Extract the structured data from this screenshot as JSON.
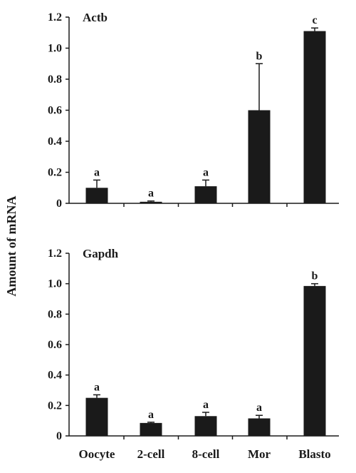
{
  "y_axis_label": "Amount of mRNA",
  "chart_data": [
    {
      "type": "bar",
      "title": "Actb",
      "categories": [
        "Oocyte",
        "2-cell",
        "8-cell",
        "Mor",
        "Blasto"
      ],
      "values": [
        0.1,
        0.01,
        0.11,
        0.6,
        1.11
      ],
      "error": [
        0.05,
        0.005,
        0.04,
        0.3,
        0.02
      ],
      "significance_labels": [
        "a",
        "a",
        "a",
        "b",
        "c"
      ],
      "ylim": [
        0,
        1.2
      ],
      "yticks": [
        "0",
        "0.2",
        "0.4",
        "0.6",
        "0.8",
        "1.0",
        "1.2"
      ],
      "bar_color": "#1a1a1a"
    },
    {
      "type": "bar",
      "title": "Gapdh",
      "categories": [
        "Oocyte",
        "2-cell",
        "8-cell",
        "Mor",
        "Blasto"
      ],
      "values": [
        0.25,
        0.085,
        0.13,
        0.115,
        0.985
      ],
      "error": [
        0.02,
        0.005,
        0.025,
        0.02,
        0.015
      ],
      "significance_labels": [
        "a",
        "a",
        "a",
        "a",
        "b"
      ],
      "ylim": [
        0,
        1.2
      ],
      "yticks": [
        "0",
        "0.2",
        "0.4",
        "0.6",
        "0.8",
        "1.0",
        "1.2"
      ],
      "bar_color": "#1a1a1a"
    }
  ]
}
